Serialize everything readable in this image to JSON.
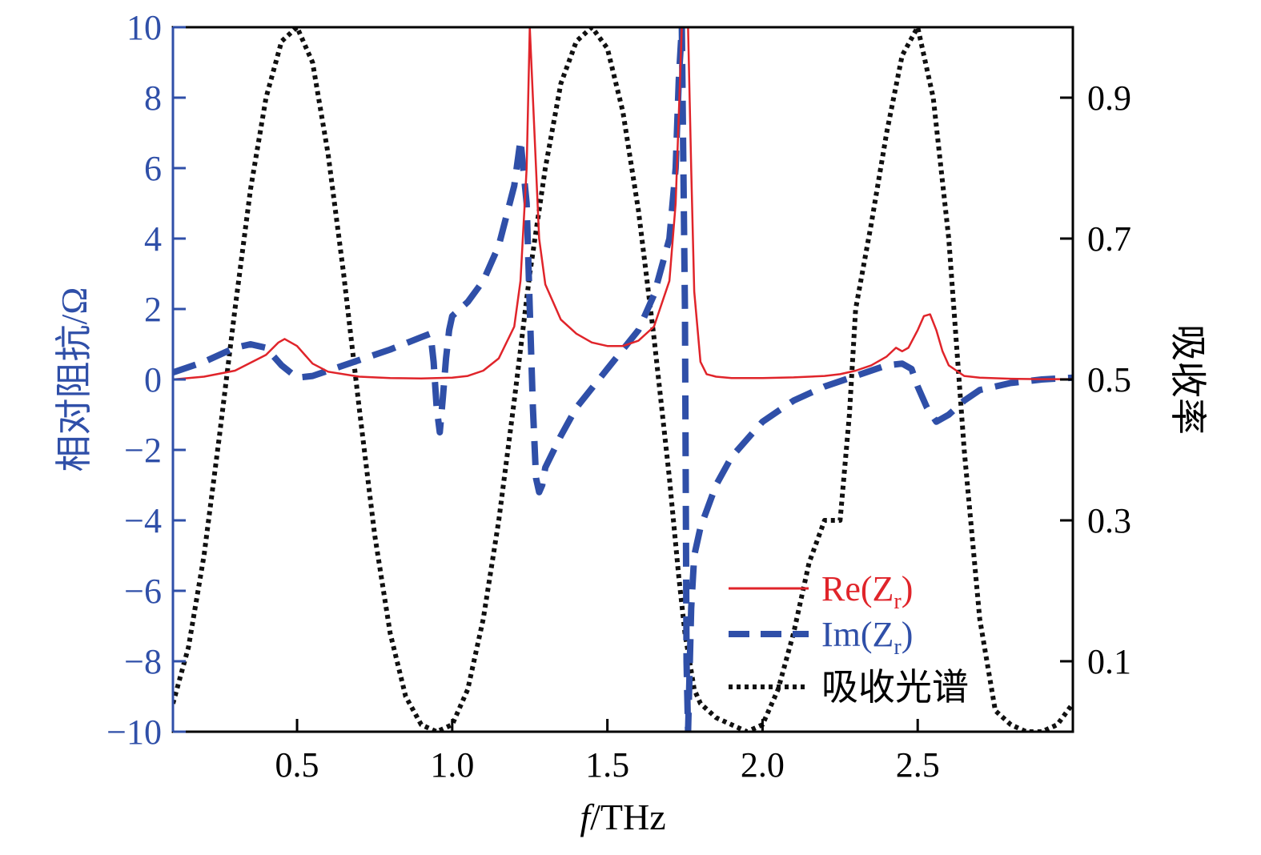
{
  "chart_data": {
    "type": "line",
    "xlabel": "/THz",
    "xlabel_italic": "f",
    "ylabel_left": "相对阻抗/Ω",
    "ylabel_right": "吸收率",
    "xlim": [
      0.1,
      3.0
    ],
    "ylim_left": [
      -10,
      10
    ],
    "ylim_right": [
      0.0,
      1.0
    ],
    "x_ticks": [
      0.5,
      1.0,
      1.5,
      2.0,
      2.5
    ],
    "x_tick_labels": [
      "0.5",
      "1.0",
      "1.5",
      "2.0",
      "2.5"
    ],
    "y_left_ticks": [
      10,
      8,
      6,
      4,
      2,
      0,
      -2,
      -4,
      -6,
      -8,
      -10
    ],
    "y_left_tick_labels": [
      "10",
      "8",
      "6",
      "4",
      "2",
      "0",
      "−2",
      "−4",
      "−6",
      "−8",
      "−10"
    ],
    "y_right_ticks": [
      0.9,
      0.7,
      0.5,
      0.3,
      0.1
    ],
    "y_right_tick_labels": [
      "0.9",
      "0.7",
      "0.5",
      "0.3",
      "0.1"
    ],
    "grid": false,
    "legend_position": "bottom-right",
    "colors": {
      "re": "#e0242a",
      "im": "#2f4fa8",
      "abs": "#111111",
      "left_axis": "#2f4fa8"
    },
    "series": [
      {
        "name": "Re(Zr)",
        "legend_main": "Re(Z",
        "legend_sub": "r",
        "legend_tail": ")",
        "axis": "left",
        "style": "solid",
        "x": [
          0.1,
          0.2,
          0.3,
          0.4,
          0.44,
          0.46,
          0.5,
          0.55,
          0.6,
          0.7,
          0.8,
          0.9,
          1.0,
          1.05,
          1.1,
          1.15,
          1.2,
          1.22,
          1.24,
          1.25,
          1.26,
          1.28,
          1.3,
          1.35,
          1.4,
          1.45,
          1.5,
          1.55,
          1.6,
          1.65,
          1.7,
          1.72,
          1.73,
          1.74,
          1.75,
          1.76,
          1.77,
          1.78,
          1.8,
          1.82,
          1.85,
          1.9,
          2.0,
          2.1,
          2.2,
          2.25,
          2.3,
          2.35,
          2.4,
          2.43,
          2.44,
          2.45,
          2.47,
          2.5,
          2.52,
          2.54,
          2.56,
          2.58,
          2.6,
          2.65,
          2.7,
          2.8,
          2.9,
          3.0
        ],
        "y": [
          0.0,
          0.08,
          0.25,
          0.7,
          1.05,
          1.15,
          0.95,
          0.45,
          0.22,
          0.08,
          0.04,
          0.03,
          0.05,
          0.1,
          0.25,
          0.6,
          1.5,
          2.8,
          6.0,
          10.0,
          8.0,
          4.0,
          2.7,
          1.7,
          1.3,
          1.05,
          0.95,
          0.95,
          1.1,
          1.5,
          2.8,
          5.0,
          7.5,
          10.0,
          10.0,
          10.0,
          6.0,
          2.5,
          0.5,
          0.15,
          0.08,
          0.04,
          0.04,
          0.06,
          0.1,
          0.15,
          0.25,
          0.4,
          0.65,
          0.9,
          0.85,
          0.8,
          0.9,
          1.4,
          1.8,
          1.85,
          1.4,
          0.8,
          0.4,
          0.1,
          0.05,
          0.02,
          0.01,
          0.01
        ]
      },
      {
        "name": "Im(Zr)",
        "legend_main": "Im(Z",
        "legend_sub": "r",
        "legend_tail": ")",
        "axis": "left",
        "style": "dashed",
        "x": [
          0.1,
          0.2,
          0.3,
          0.35,
          0.4,
          0.45,
          0.5,
          0.55,
          0.6,
          0.7,
          0.8,
          0.9,
          0.93,
          0.94,
          0.95,
          0.96,
          0.97,
          0.98,
          0.99,
          1.0,
          1.05,
          1.1,
          1.15,
          1.2,
          1.22,
          1.24,
          1.25,
          1.26,
          1.27,
          1.28,
          1.29,
          1.3,
          1.35,
          1.4,
          1.5,
          1.6,
          1.65,
          1.7,
          1.72,
          1.73,
          1.74,
          1.75,
          1.755,
          1.76,
          1.77,
          1.78,
          1.8,
          1.85,
          1.9,
          2.0,
          2.1,
          2.2,
          2.3,
          2.4,
          2.45,
          2.48,
          2.5,
          2.53,
          2.56,
          2.6,
          2.65,
          2.7,
          2.8,
          2.9,
          3.0
        ],
        "y": [
          0.2,
          0.5,
          0.9,
          1.0,
          0.9,
          0.4,
          0.05,
          0.1,
          0.25,
          0.55,
          0.85,
          1.2,
          1.3,
          0.5,
          -0.8,
          -1.5,
          -0.5,
          0.6,
          1.4,
          1.8,
          2.2,
          2.8,
          3.8,
          5.5,
          6.8,
          5.0,
          2.0,
          -0.8,
          -2.8,
          -3.2,
          -3.0,
          -2.5,
          -1.6,
          -0.8,
          0.3,
          1.4,
          2.4,
          4.0,
          6.0,
          8.5,
          10.0,
          2.0,
          -8.0,
          -10.0,
          -6.5,
          -5.0,
          -4.2,
          -3.0,
          -2.2,
          -1.2,
          -0.6,
          -0.2,
          0.1,
          0.4,
          0.45,
          0.3,
          -0.2,
          -0.8,
          -1.2,
          -1.0,
          -0.6,
          -0.3,
          -0.1,
          0.0,
          0.05
        ]
      },
      {
        "name": "吸收光谱",
        "legend_main": "吸收光谱",
        "axis": "right",
        "style": "dotted",
        "x": [
          0.1,
          0.15,
          0.2,
          0.25,
          0.3,
          0.35,
          0.4,
          0.45,
          0.5,
          0.55,
          0.6,
          0.65,
          0.7,
          0.75,
          0.8,
          0.85,
          0.9,
          0.95,
          1.0,
          1.05,
          1.1,
          1.15,
          1.2,
          1.25,
          1.3,
          1.35,
          1.4,
          1.45,
          1.5,
          1.55,
          1.6,
          1.65,
          1.7,
          1.73,
          1.75,
          1.78,
          1.8,
          1.85,
          1.9,
          1.95,
          2.0,
          2.05,
          2.1,
          2.15,
          2.2,
          2.25,
          2.28,
          2.3,
          2.35,
          2.4,
          2.45,
          2.5,
          2.55,
          2.6,
          2.65,
          2.7,
          2.75,
          2.8,
          2.85,
          2.9,
          2.95,
          3.0
        ],
        "y": [
          0.04,
          0.12,
          0.25,
          0.42,
          0.6,
          0.77,
          0.9,
          0.98,
          1.0,
          0.95,
          0.82,
          0.65,
          0.46,
          0.28,
          0.14,
          0.05,
          0.01,
          0.0,
          0.01,
          0.06,
          0.16,
          0.3,
          0.47,
          0.65,
          0.8,
          0.92,
          0.98,
          1.0,
          0.97,
          0.88,
          0.74,
          0.56,
          0.36,
          0.22,
          0.14,
          0.06,
          0.04,
          0.02,
          0.01,
          0.0,
          0.01,
          0.06,
          0.14,
          0.24,
          0.3,
          0.3,
          0.45,
          0.6,
          0.72,
          0.85,
          0.96,
          1.0,
          0.9,
          0.7,
          0.4,
          0.16,
          0.03,
          0.01,
          0.0,
          0.0,
          0.01,
          0.04
        ]
      }
    ]
  }
}
